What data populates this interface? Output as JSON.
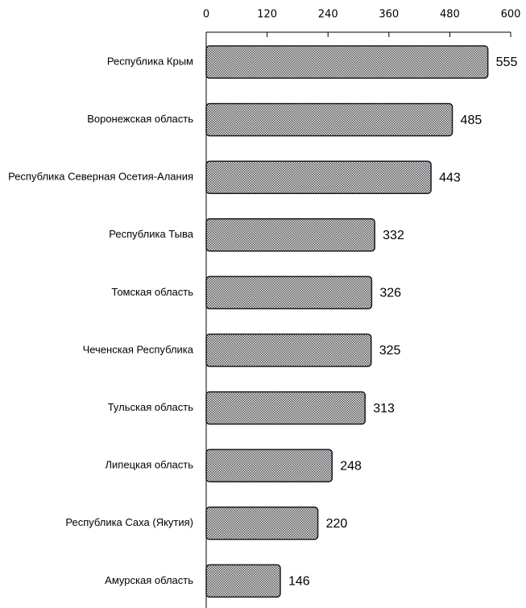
{
  "chart_data": {
    "type": "bar",
    "orientation": "horizontal",
    "categories": [
      "Республика Крым",
      "Воронежская область",
      "Республика Северная Осетия-Алания",
      "Республика Тыва",
      "Томская область",
      "Чеченская Республика",
      "Тульская область",
      "Липецкая область",
      "Республика Саха (Якутия)",
      "Амурская область"
    ],
    "values": [
      555,
      485,
      443,
      332,
      326,
      325,
      313,
      248,
      220,
      146
    ],
    "color": "#9a9a9a",
    "xlim": [
      0,
      600
    ],
    "xticks": [
      0,
      120,
      240,
      360,
      480,
      600
    ],
    "grid": false
  }
}
